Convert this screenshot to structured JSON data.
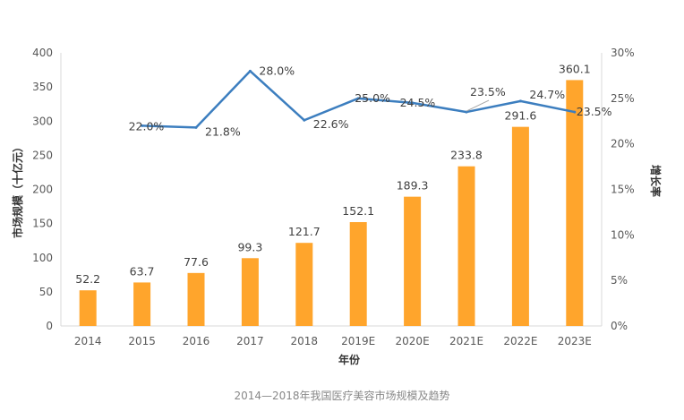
{
  "chart_data": {
    "type": "bar+line",
    "title": "",
    "categories": [
      "2014",
      "2015",
      "2016",
      "2017",
      "2018",
      "2019E",
      "2020E",
      "2021E",
      "2022E",
      "2023E"
    ],
    "series": [
      {
        "name": "市场规模",
        "type": "bar",
        "axis": "left",
        "color": "#FFA52C",
        "values": [
          52.2,
          63.7,
          77.6,
          99.3,
          121.7,
          152.1,
          189.3,
          233.8,
          291.6,
          360.1
        ],
        "labels": [
          "52.2",
          "63.7",
          "77.6",
          "99.3",
          "121.7",
          "152.1",
          "189.3",
          "233.8",
          "291.6",
          "360.1"
        ]
      },
      {
        "name": "增长率",
        "type": "line",
        "axis": "right",
        "color": "#3C7EBF",
        "values": [
          null,
          22.0,
          21.8,
          28.0,
          22.6,
          25.0,
          24.5,
          23.5,
          24.7,
          23.5
        ],
        "labels": [
          null,
          "22.0%",
          "21.8%",
          "28.0%",
          "22.6%",
          "25.0%",
          "24.5%",
          "23.5%",
          "24.7%",
          "23.5%"
        ]
      }
    ],
    "xlabel": "年份",
    "ylabel": "市场规模（十亿元）",
    "y2label": "增长率",
    "ylim": [
      0,
      400
    ],
    "y2lim": [
      0,
      30
    ],
    "yticks": [
      "0",
      "50",
      "100",
      "150",
      "200",
      "250",
      "300",
      "350",
      "400"
    ],
    "y2ticks": [
      "0%",
      "5%",
      "10%",
      "15%",
      "20%",
      "25%",
      "30%"
    ],
    "grid": false,
    "legend": "none"
  },
  "caption": "2014—2018年我国医疗美容市场规模及趋势"
}
